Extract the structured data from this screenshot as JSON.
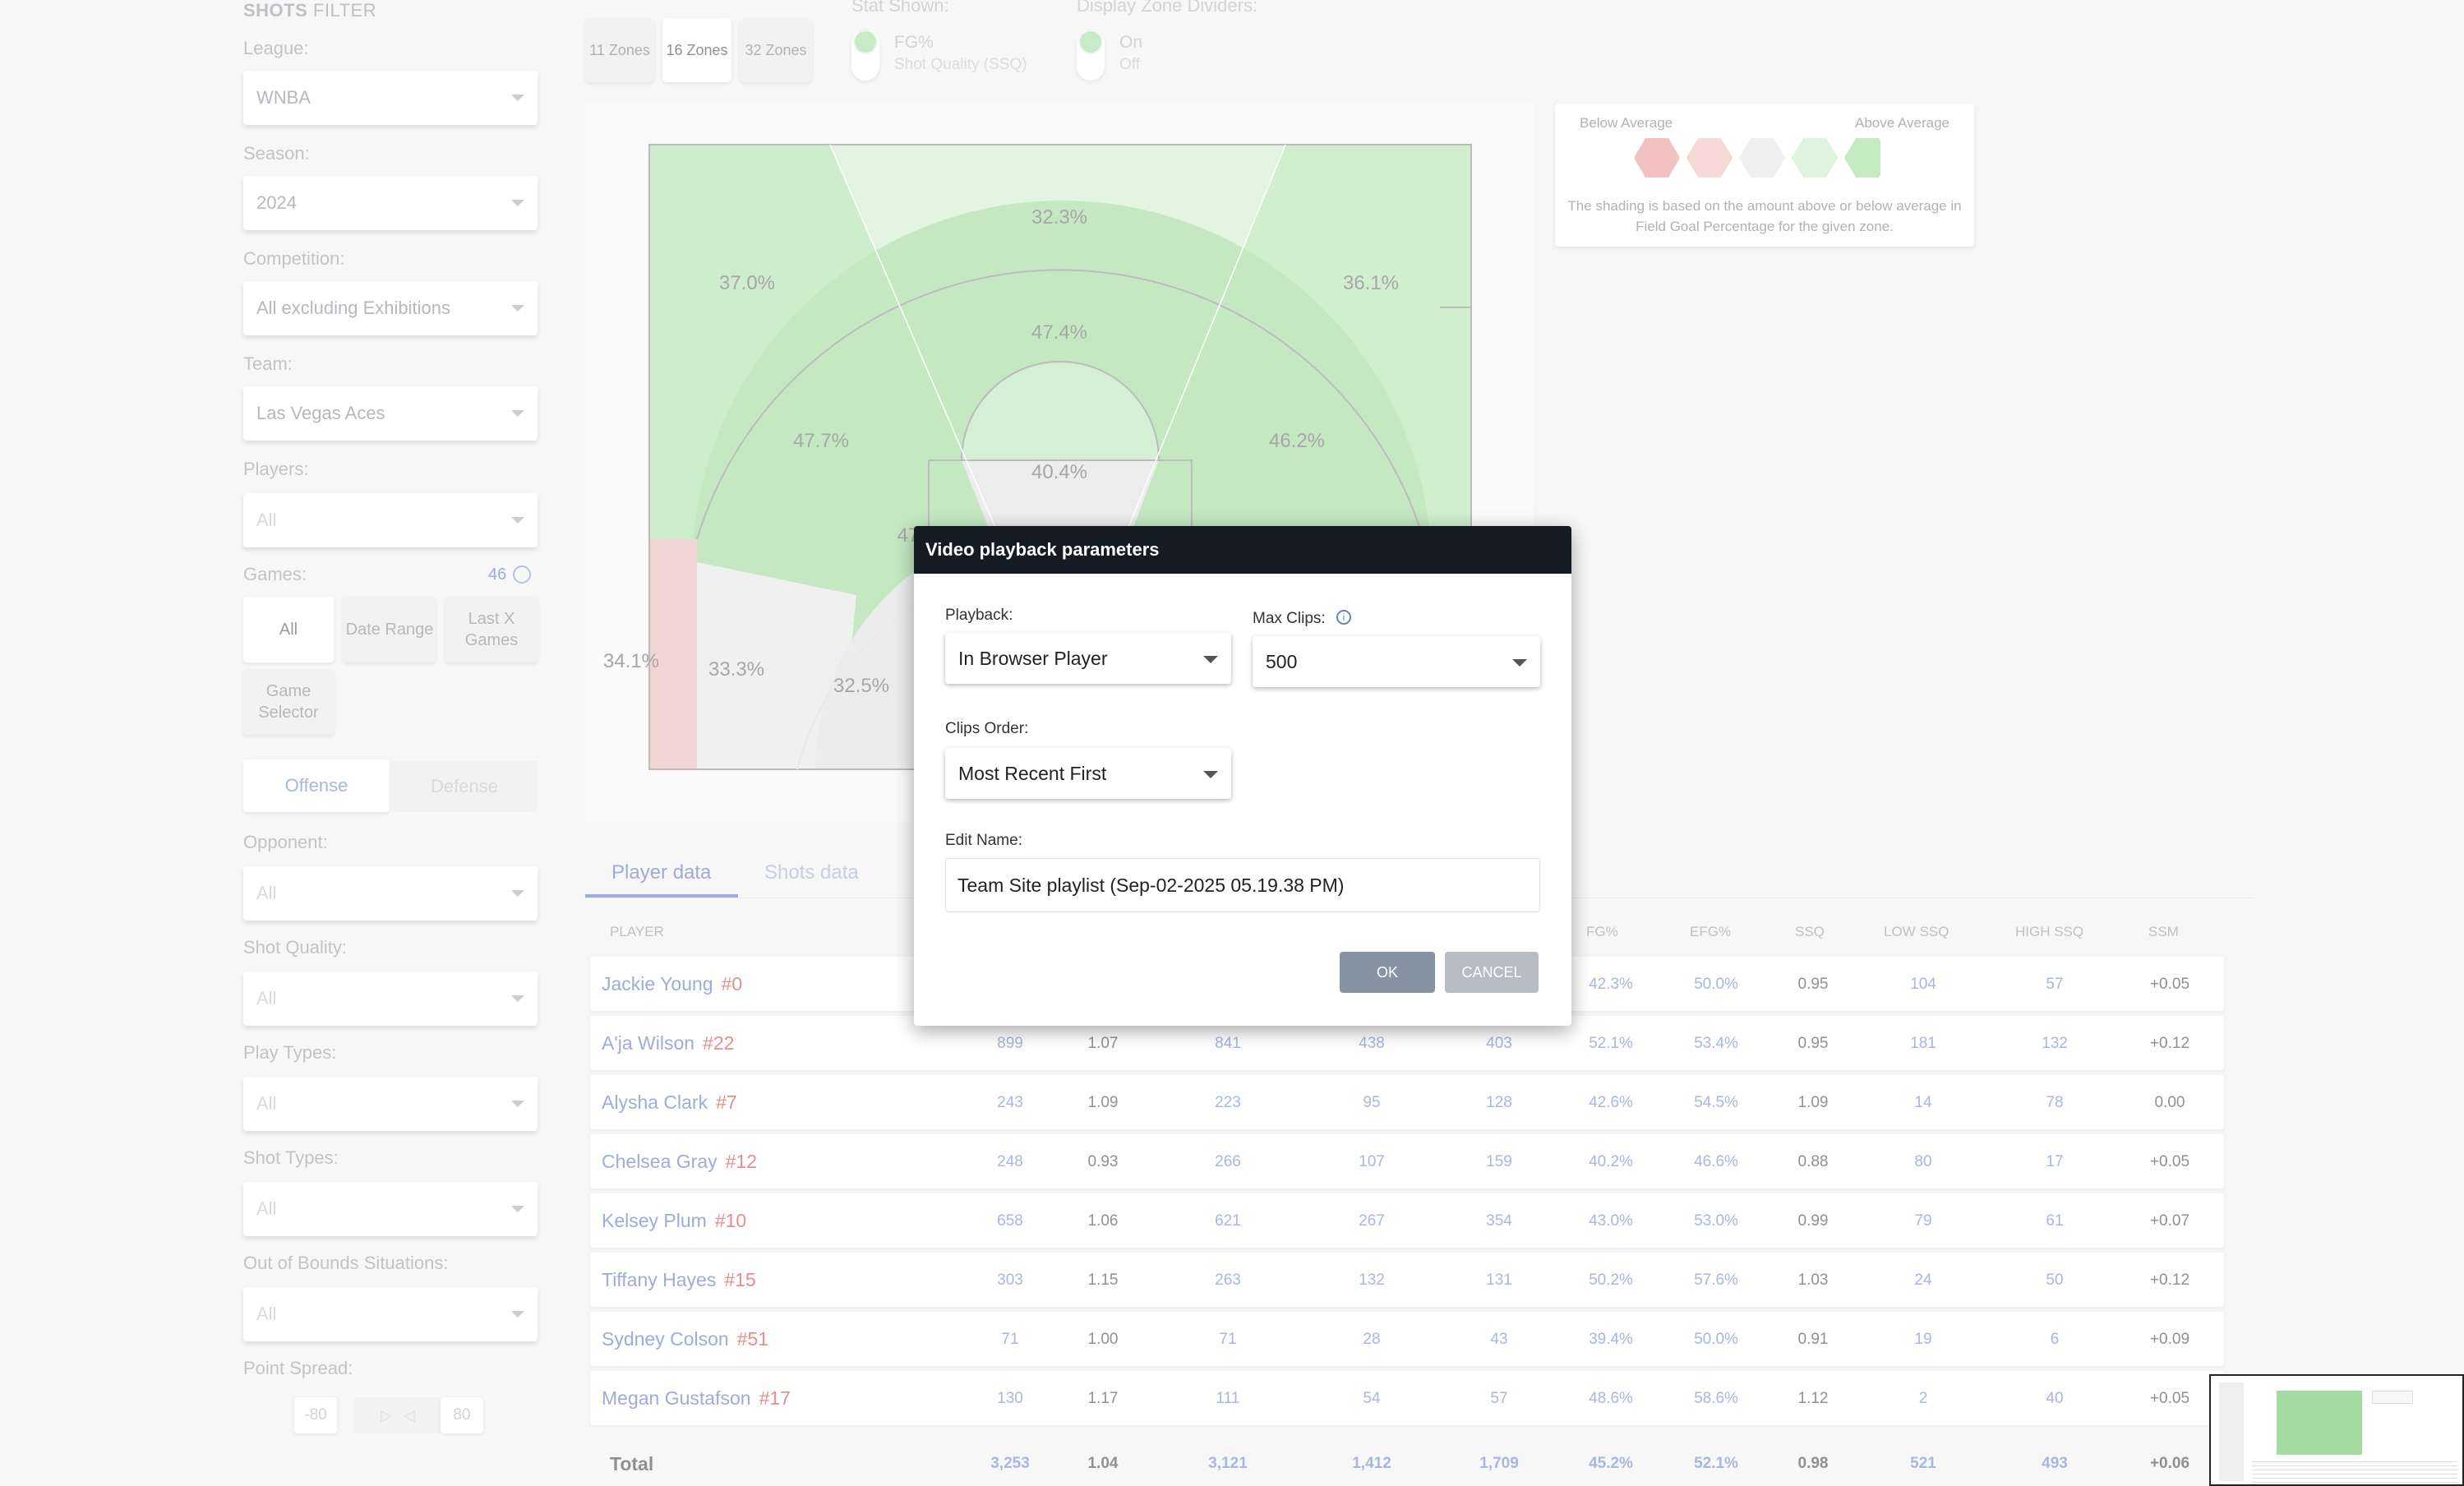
{
  "sidebar": {
    "title_bold": "SHOTS",
    "title_rest": "FILTER",
    "league_label": "League:",
    "league_value": "WNBA",
    "season_label": "Season:",
    "season_value": "2024",
    "competition_label": "Competition:",
    "competition_value": "All excluding Exhibitions",
    "team_label": "Team:",
    "team_value": "Las Vegas Aces",
    "players_label": "Players:",
    "players_value": "All",
    "games_label": "Games:",
    "games_count": "46",
    "games_buttons": [
      "All",
      "Date Range",
      "Last X Games",
      "Game Selector"
    ],
    "offense_label": "Offense",
    "defense_label": "Defense",
    "opponent_label": "Opponent:",
    "opponent_value": "All",
    "shot_quality_label": "Shot Quality:",
    "shot_quality_value": "All",
    "play_types_label": "Play Types:",
    "play_types_value": "All",
    "shot_types_label": "Shot Types:",
    "shot_types_value": "All",
    "oob_label": "Out of Bounds Situations:",
    "oob_value": "All",
    "point_spread_label": "Point Spread:",
    "spread_min": "-80",
    "spread_max": "80"
  },
  "zones": {
    "buttons": [
      "11 Zones",
      "16 Zones",
      "32 Zones"
    ],
    "active": "16 Zones"
  },
  "stat_shown": {
    "label": "Stat Shown:",
    "option1": "FG%",
    "option2": "Shot Quality (SSQ)"
  },
  "dividers": {
    "label": "Display Zone Dividers:",
    "option1": "On",
    "option2": "Off"
  },
  "court": {
    "zone_values": [
      "32.3%",
      "37.0%",
      "36.1%",
      "47.4%",
      "47.7%",
      "46.2%",
      "40.4%",
      "47",
      "34.1%",
      "33.3%",
      "32.5%"
    ]
  },
  "legend": {
    "below": "Below Average",
    "above": "Above Average",
    "colors": [
      "#e8a09c",
      "#f2c4c2",
      "#e8e8e8",
      "#cdeecd",
      "#a6e0a4"
    ],
    "note": "The shading is based on the amount above or below average in Field Goal Percentage for the given zone."
  },
  "tabs": {
    "player_data": "Player data",
    "shots_data": "Shots data"
  },
  "table": {
    "headers": [
      "PLAYER",
      "FG%",
      "EFG%",
      "SSQ",
      "LOW SSQ",
      "HIGH SSQ",
      "SSM"
    ],
    "rows": [
      {
        "name": "Jackie Young",
        "num": "#0",
        "c1": "",
        "c2": "",
        "c3": "",
        "c4": "",
        "c5": "",
        "fg": "42.3%",
        "efg": "50.0%",
        "ssq": "0.95",
        "low": "104",
        "high": "57",
        "ssm": "+0.05"
      },
      {
        "name": "A'ja Wilson",
        "num": "#22",
        "c1": "899",
        "c2": "1.07",
        "c3": "841",
        "c4": "438",
        "c5": "403",
        "fg": "52.1%",
        "efg": "53.4%",
        "ssq": "0.95",
        "low": "181",
        "high": "132",
        "ssm": "+0.12"
      },
      {
        "name": "Alysha Clark",
        "num": "#7",
        "c1": "243",
        "c2": "1.09",
        "c3": "223",
        "c4": "95",
        "c5": "128",
        "fg": "42.6%",
        "efg": "54.5%",
        "ssq": "1.09",
        "low": "14",
        "high": "78",
        "ssm": "0.00"
      },
      {
        "name": "Chelsea Gray",
        "num": "#12",
        "c1": "248",
        "c2": "0.93",
        "c3": "266",
        "c4": "107",
        "c5": "159",
        "fg": "40.2%",
        "efg": "46.6%",
        "ssq": "0.88",
        "low": "80",
        "high": "17",
        "ssm": "+0.05"
      },
      {
        "name": "Kelsey Plum",
        "num": "#10",
        "c1": "658",
        "c2": "1.06",
        "c3": "621",
        "c4": "267",
        "c5": "354",
        "fg": "43.0%",
        "efg": "53.0%",
        "ssq": "0.99",
        "low": "79",
        "high": "61",
        "ssm": "+0.07"
      },
      {
        "name": "Tiffany Hayes",
        "num": "#15",
        "c1": "303",
        "c2": "1.15",
        "c3": "263",
        "c4": "132",
        "c5": "131",
        "fg": "50.2%",
        "efg": "57.6%",
        "ssq": "1.03",
        "low": "24",
        "high": "50",
        "ssm": "+0.12"
      },
      {
        "name": "Sydney Colson",
        "num": "#51",
        "c1": "71",
        "c2": "1.00",
        "c3": "71",
        "c4": "28",
        "c5": "43",
        "fg": "39.4%",
        "efg": "50.0%",
        "ssq": "0.91",
        "low": "19",
        "high": "6",
        "ssm": "+0.09"
      },
      {
        "name": "Megan Gustafson",
        "num": "#17",
        "c1": "130",
        "c2": "1.17",
        "c3": "111",
        "c4": "54",
        "c5": "57",
        "fg": "48.6%",
        "efg": "58.6%",
        "ssq": "1.12",
        "low": "2",
        "high": "40",
        "ssm": "+0.05"
      }
    ],
    "total": {
      "name": "Total",
      "c1": "3,253",
      "c2": "1.04",
      "c3": "3,121",
      "c4": "1,412",
      "c5": "1,709",
      "fg": "45.2%",
      "efg": "52.1%",
      "ssq": "0.98",
      "low": "521",
      "high": "493",
      "ssm": "+0.06"
    }
  },
  "modal": {
    "title": "Video playback parameters",
    "playback_label": "Playback:",
    "playback_value": "In Browser Player",
    "max_clips_label": "Max Clips:",
    "max_clips_value": "500",
    "clips_order_label": "Clips Order:",
    "clips_order_value": "Most Recent First",
    "edit_name_label": "Edit Name:",
    "edit_name_value": "Team Site playlist (Sep-02-2025 05.19.38 PM)",
    "ok_label": "OK",
    "cancel_label": "CANCEL"
  }
}
